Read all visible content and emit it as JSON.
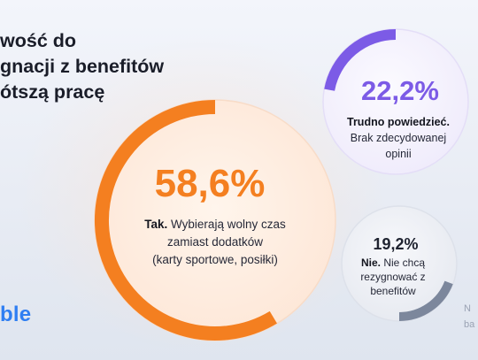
{
  "headline": {
    "lines": [
      "wość do",
      "gnacji z benefitów",
      "ótszą pracę"
    ]
  },
  "brand": {
    "logo_text": "ble"
  },
  "note": {
    "lines": [
      "N",
      "ba"
    ]
  },
  "chart_data": {
    "type": "pie",
    "subtype": "progress-rings",
    "slices": [
      {
        "value": 58.6,
        "value_label": "58,6%",
        "label_bold": "Tak.",
        "label_lines": [
          "Wybierają wolny czas",
          "zamiast dodatków",
          "(karty sportowe, posiłki)"
        ],
        "color": "#f47f20"
      },
      {
        "value": 22.2,
        "value_label": "22,2%",
        "label_bold": "Trudno powiedzieć.",
        "label_lines": [
          "Brak zdecydowanej",
          "opinii"
        ],
        "color": "#7c5be6"
      },
      {
        "value": 19.2,
        "value_label": "19,2%",
        "label_bold": "Nie.",
        "label_lines": [
          "Nie chcą",
          "rezygnować z",
          "benefitów"
        ],
        "color": "#7c879c"
      }
    ]
  }
}
